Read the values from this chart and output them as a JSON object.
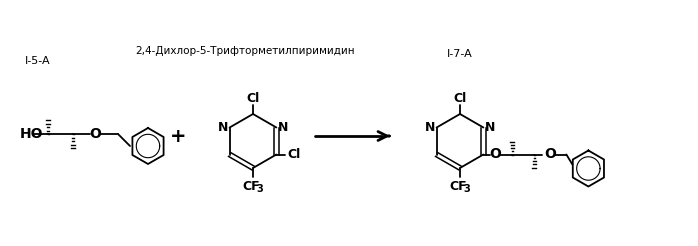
{
  "background_color": "#ffffff",
  "figsize": [
    6.98,
    2.46
  ],
  "dpi": 100,
  "label_i5a": "I-5-A",
  "label_i7a": "I-7-A",
  "label_reagent": "2,4-Дихлор-5-Трифторметилпиримидин",
  "line_color": "#000000",
  "lw": 1.3
}
